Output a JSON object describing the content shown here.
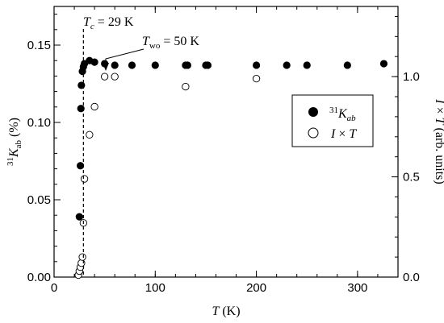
{
  "chart_data": {
    "type": "scatter",
    "x_axis": {
      "label_symbol": "T",
      "label_unit": " (K)",
      "range": [
        0,
        340
      ],
      "ticks": [
        0,
        100,
        200,
        300
      ],
      "minor_step": 20
    },
    "y_left": {
      "label_sup": "31",
      "label_symbol": "K",
      "label_sub": "ab",
      "label_unit": " (%)",
      "range": [
        0,
        0.175
      ],
      "ticks": [
        "0.00",
        "0.05",
        "0.10",
        "0.15"
      ],
      "minor_step": 0.01
    },
    "y_right": {
      "label_symbol": "I",
      "label_times": " × ",
      "label_symbol2": "T",
      "label_unit": " (arb. units)",
      "range": [
        0,
        1.35
      ],
      "ticks": [
        "0.0",
        "0.5",
        "1.0"
      ],
      "minor_step": 0.1
    },
    "series": [
      {
        "name_sup": "31",
        "name_symbol": "K",
        "name_sub": "ab",
        "marker": "filled-circle",
        "axis": "left",
        "x": [
          25,
          26,
          26.5,
          27,
          28,
          29,
          30,
          35,
          40,
          50,
          60,
          77,
          100,
          130,
          132,
          150,
          152,
          200,
          230,
          250,
          290,
          326
        ],
        "y": [
          0.039,
          0.072,
          0.109,
          0.124,
          0.133,
          0.136,
          0.138,
          0.14,
          0.139,
          0.138,
          0.137,
          0.137,
          0.137,
          0.137,
          0.137,
          0.137,
          0.137,
          0.137,
          0.137,
          0.137,
          0.137,
          0.138
        ]
      },
      {
        "name_symbol": "I",
        "name_times": " × ",
        "name_symbol2": "T",
        "marker": "open-circle",
        "axis": "right",
        "x": [
          24,
          25,
          26,
          27,
          28,
          29,
          30,
          35,
          40,
          50,
          60,
          130,
          200
        ],
        "y": [
          0.01,
          0.03,
          0.05,
          0.07,
          0.1,
          0.27,
          0.49,
          0.71,
          0.85,
          1.0,
          1.0,
          0.95,
          0.99
        ]
      }
    ],
    "annotations": {
      "tc": {
        "symbol": "T",
        "sub": "c",
        "text": " = 29 K",
        "x": 29
      },
      "two": {
        "symbol": "T",
        "sub": "wo",
        "text": " = 50 K",
        "x": 50
      }
    },
    "legend_position": "right-middle"
  }
}
